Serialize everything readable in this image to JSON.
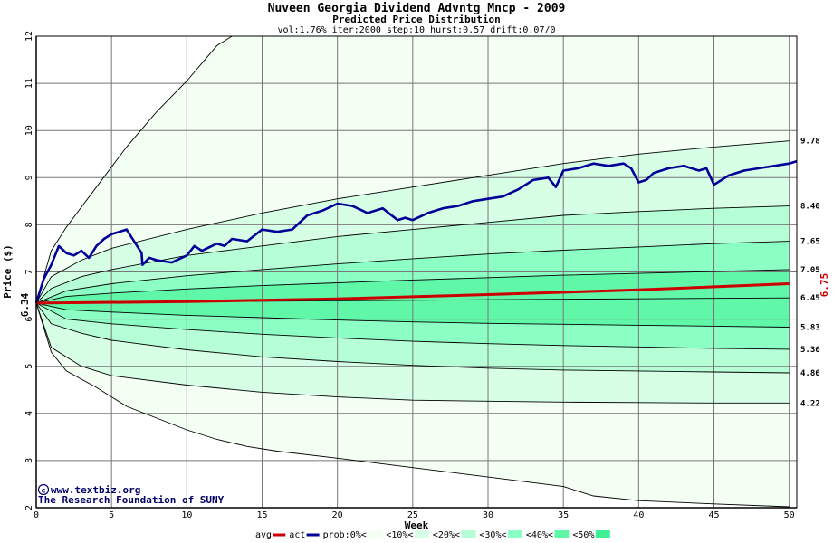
{
  "chart_data": {
    "type": "line",
    "title": "Nuveen Georgia Dividend Advntg Mncp - 2009",
    "subtitle": "Predicted Price Distribution",
    "params": "vol:1.76% iter:2000 step:10 hurst:0.57 drift:0.07/0",
    "xlabel": "Week",
    "ylabel": "Price ($)",
    "xlim": [
      0,
      50.5
    ],
    "ylim": [
      2,
      12
    ],
    "x_ticks": [
      0,
      5,
      10,
      15,
      20,
      25,
      30,
      35,
      40,
      45,
      50
    ],
    "y_ticks": [
      2,
      3,
      4,
      5,
      6,
      7,
      8,
      9,
      10,
      11,
      12
    ],
    "start_price_label": "6.34",
    "end_avg_label": "6.75",
    "grid": true,
    "credit_line1": "www.textbiz.org",
    "credit_line2": "The Research Foundation of SUNY",
    "colors": {
      "avg": "#cc0000",
      "act": "#000099",
      "band_0": "#f2fff2",
      "band_10": "#d6ffe6",
      "band_20": "#b6ffd6",
      "band_30": "#8cffc4",
      "band_40": "#60f7a8",
      "band_50": "#3ff093"
    },
    "percentile_lines": [
      {
        "label": "",
        "values": [
          [
            0,
            6.34
          ],
          [
            1,
            7.45
          ],
          [
            2,
            7.95
          ],
          [
            4,
            8.8
          ],
          [
            6,
            9.65
          ],
          [
            8,
            10.4
          ],
          [
            10,
            11.05
          ],
          [
            12,
            11.8
          ],
          [
            13,
            12.0
          ]
        ]
      },
      {
        "label": "9.78",
        "values": [
          [
            0,
            6.34
          ],
          [
            1,
            6.9
          ],
          [
            3,
            7.25
          ],
          [
            5,
            7.5
          ],
          [
            10,
            7.9
          ],
          [
            15,
            8.25
          ],
          [
            20,
            8.55
          ],
          [
            25,
            8.8
          ],
          [
            30,
            9.05
          ],
          [
            35,
            9.3
          ],
          [
            40,
            9.5
          ],
          [
            45,
            9.65
          ],
          [
            50,
            9.78
          ]
        ]
      },
      {
        "label": "8.40",
        "values": [
          [
            0,
            6.34
          ],
          [
            1,
            6.65
          ],
          [
            3,
            6.9
          ],
          [
            5,
            7.05
          ],
          [
            10,
            7.35
          ],
          [
            15,
            7.55
          ],
          [
            20,
            7.75
          ],
          [
            25,
            7.9
          ],
          [
            30,
            8.05
          ],
          [
            35,
            8.2
          ],
          [
            40,
            8.28
          ],
          [
            45,
            8.35
          ],
          [
            50,
            8.4
          ]
        ]
      },
      {
        "label": "7.65",
        "values": [
          [
            0,
            6.34
          ],
          [
            2,
            6.6
          ],
          [
            5,
            6.75
          ],
          [
            10,
            6.92
          ],
          [
            15,
            7.05
          ],
          [
            20,
            7.17
          ],
          [
            25,
            7.28
          ],
          [
            30,
            7.38
          ],
          [
            35,
            7.46
          ],
          [
            40,
            7.53
          ],
          [
            45,
            7.6
          ],
          [
            50,
            7.65
          ]
        ]
      },
      {
        "label": "7.05",
        "values": [
          [
            0,
            6.34
          ],
          [
            2,
            6.48
          ],
          [
            5,
            6.55
          ],
          [
            10,
            6.64
          ],
          [
            15,
            6.71
          ],
          [
            20,
            6.77
          ],
          [
            25,
            6.83
          ],
          [
            30,
            6.88
          ],
          [
            35,
            6.93
          ],
          [
            40,
            6.97
          ],
          [
            45,
            7.01
          ],
          [
            50,
            7.05
          ]
        ]
      },
      {
        "label": "6.45",
        "values": [
          [
            0,
            6.34
          ],
          [
            5,
            6.36
          ],
          [
            10,
            6.37
          ],
          [
            20,
            6.39
          ],
          [
            30,
            6.41
          ],
          [
            40,
            6.43
          ],
          [
            50,
            6.45
          ]
        ]
      },
      {
        "label": "5.83",
        "values": [
          [
            0,
            6.34
          ],
          [
            2,
            6.2
          ],
          [
            5,
            6.15
          ],
          [
            10,
            6.08
          ],
          [
            15,
            6.03
          ],
          [
            20,
            5.98
          ],
          [
            25,
            5.94
          ],
          [
            30,
            5.91
          ],
          [
            35,
            5.89
          ],
          [
            40,
            5.87
          ],
          [
            45,
            5.85
          ],
          [
            50,
            5.83
          ]
        ]
      },
      {
        "label": "5.36",
        "values": [
          [
            0,
            6.34
          ],
          [
            2,
            6.0
          ],
          [
            5,
            5.9
          ],
          [
            10,
            5.78
          ],
          [
            15,
            5.68
          ],
          [
            20,
            5.6
          ],
          [
            25,
            5.53
          ],
          [
            30,
            5.48
          ],
          [
            35,
            5.44
          ],
          [
            40,
            5.41
          ],
          [
            45,
            5.38
          ],
          [
            50,
            5.36
          ]
        ]
      },
      {
        "label": "4.86",
        "values": [
          [
            0,
            6.34
          ],
          [
            1,
            5.9
          ],
          [
            3,
            5.7
          ],
          [
            5,
            5.55
          ],
          [
            10,
            5.35
          ],
          [
            15,
            5.2
          ],
          [
            20,
            5.1
          ],
          [
            25,
            5.02
          ],
          [
            30,
            4.96
          ],
          [
            35,
            4.92
          ],
          [
            40,
            4.9
          ],
          [
            45,
            4.88
          ],
          [
            50,
            4.86
          ]
        ]
      },
      {
        "label": "4.22",
        "values": [
          [
            0,
            6.34
          ],
          [
            1,
            5.4
          ],
          [
            3,
            5.0
          ],
          [
            5,
            4.8
          ],
          [
            10,
            4.6
          ],
          [
            15,
            4.45
          ],
          [
            20,
            4.35
          ],
          [
            25,
            4.28
          ],
          [
            30,
            4.26
          ],
          [
            35,
            4.24
          ],
          [
            40,
            4.23
          ],
          [
            45,
            4.22
          ],
          [
            50,
            4.22
          ]
        ]
      },
      {
        "label": "",
        "values": [
          [
            0,
            6.34
          ],
          [
            1,
            5.3
          ],
          [
            2,
            4.9
          ],
          [
            4,
            4.55
          ],
          [
            6,
            4.15
          ],
          [
            8,
            3.9
          ],
          [
            10,
            3.65
          ],
          [
            12,
            3.45
          ],
          [
            14,
            3.3
          ],
          [
            16,
            3.2
          ],
          [
            20,
            3.05
          ],
          [
            25,
            2.85
          ],
          [
            30,
            2.65
          ],
          [
            35,
            2.45
          ],
          [
            37,
            2.25
          ],
          [
            40,
            2.15
          ],
          [
            45,
            2.08
          ],
          [
            50,
            2.02
          ]
        ]
      }
    ],
    "series": [
      {
        "name": "avg",
        "values": [
          [
            0,
            6.34
          ],
          [
            10,
            6.37
          ],
          [
            20,
            6.43
          ],
          [
            30,
            6.52
          ],
          [
            40,
            6.62
          ],
          [
            50,
            6.75
          ]
        ]
      },
      {
        "name": "act",
        "values": [
          [
            0,
            6.34
          ],
          [
            0.5,
            6.85
          ],
          [
            1,
            7.15
          ],
          [
            1.5,
            7.55
          ],
          [
            2,
            7.4
          ],
          [
            2.5,
            7.35
          ],
          [
            3,
            7.45
          ],
          [
            3.5,
            7.3
          ],
          [
            4,
            7.55
          ],
          [
            4.5,
            7.7
          ],
          [
            5,
            7.8
          ],
          [
            5.5,
            7.85
          ],
          [
            6,
            7.9
          ],
          [
            6.3,
            7.75
          ],
          [
            7,
            7.4
          ],
          [
            7.05,
            7.15
          ],
          [
            7.5,
            7.3
          ],
          [
            8,
            7.25
          ],
          [
            9,
            7.2
          ],
          [
            10,
            7.35
          ],
          [
            10.5,
            7.55
          ],
          [
            11,
            7.45
          ],
          [
            12,
            7.6
          ],
          [
            12.5,
            7.55
          ],
          [
            13,
            7.7
          ],
          [
            14,
            7.65
          ],
          [
            15,
            7.9
          ],
          [
            16,
            7.85
          ],
          [
            17,
            7.9
          ],
          [
            18,
            8.2
          ],
          [
            18.5,
            8.25
          ],
          [
            19,
            8.3
          ],
          [
            20,
            8.45
          ],
          [
            21,
            8.4
          ],
          [
            22,
            8.25
          ],
          [
            23,
            8.35
          ],
          [
            24,
            8.1
          ],
          [
            24.5,
            8.15
          ],
          [
            25,
            8.1
          ],
          [
            26,
            8.25
          ],
          [
            27,
            8.35
          ],
          [
            28,
            8.4
          ],
          [
            29,
            8.5
          ],
          [
            30,
            8.55
          ],
          [
            31,
            8.6
          ],
          [
            32,
            8.75
          ],
          [
            33,
            8.95
          ],
          [
            34,
            9.0
          ],
          [
            34.5,
            8.8
          ],
          [
            35,
            9.15
          ],
          [
            36,
            9.2
          ],
          [
            37,
            9.3
          ],
          [
            38,
            9.25
          ],
          [
            39,
            9.3
          ],
          [
            39.5,
            9.2
          ],
          [
            40,
            8.9
          ],
          [
            40.5,
            8.95
          ],
          [
            41,
            9.1
          ],
          [
            42,
            9.2
          ],
          [
            43,
            9.25
          ],
          [
            44,
            9.15
          ],
          [
            44.5,
            9.2
          ],
          [
            45,
            8.85
          ],
          [
            46,
            9.05
          ],
          [
            47,
            9.15
          ],
          [
            48,
            9.2
          ],
          [
            49,
            9.25
          ],
          [
            50,
            9.3
          ],
          [
            50.5,
            9.35
          ]
        ]
      }
    ],
    "legend": {
      "placement": "bottom",
      "items": [
        {
          "label": "avg",
          "kind": "line",
          "color": "#cc0000"
        },
        {
          "label": "act",
          "kind": "line",
          "color": "#000099"
        },
        {
          "label": "prob:0%<",
          "kind": "box",
          "color": "#f2fff2"
        },
        {
          "label": "<10%<",
          "kind": "box",
          "color": "#d6ffe6"
        },
        {
          "label": "<20%<",
          "kind": "box",
          "color": "#b6ffd6"
        },
        {
          "label": "<30%<",
          "kind": "box",
          "color": "#8cffc4"
        },
        {
          "label": "<40%<",
          "kind": "box",
          "color": "#60f7a8"
        },
        {
          "label": "<50%",
          "kind": "box",
          "color": "#3ff093"
        }
      ]
    }
  }
}
